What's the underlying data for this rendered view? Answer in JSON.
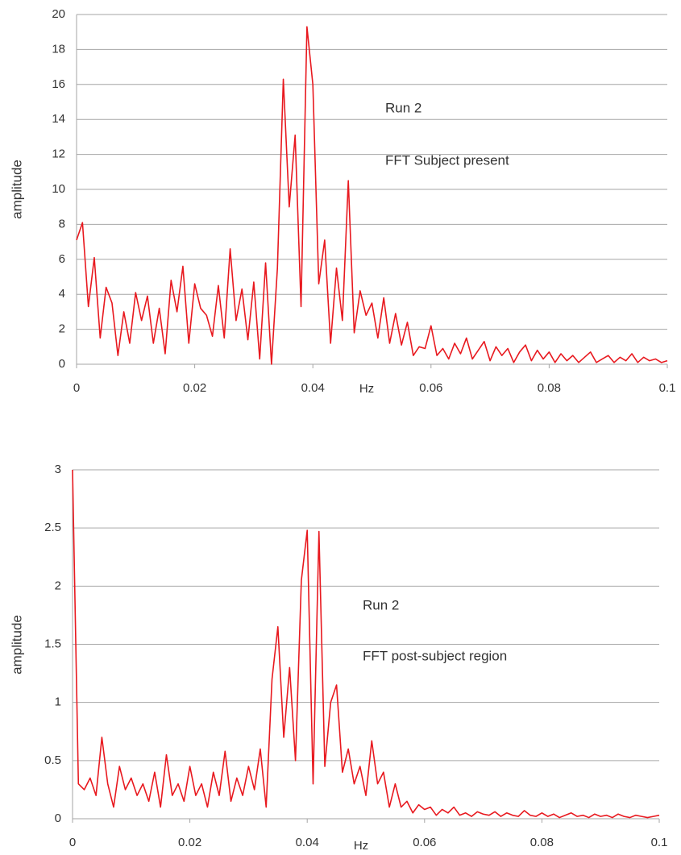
{
  "chart_data": [
    {
      "type": "line",
      "x_label": "Hz",
      "y_label": "amplitude",
      "annotations": [
        "Run 2",
        "FFT Subject present"
      ],
      "color": "#e8191f",
      "grid": true,
      "xlim": [
        0,
        0.1
      ],
      "xticks": [
        0,
        0.02,
        0.04,
        0.06,
        0.08,
        0.1
      ],
      "ylim": [
        0,
        20
      ],
      "yticks": [
        0,
        2,
        4,
        6,
        8,
        10,
        12,
        14,
        16,
        18,
        20
      ],
      "x": [
        0,
        0.001,
        0.002,
        0.003,
        0.004,
        0.005,
        0.006,
        0.007,
        0.008,
        0.009,
        0.01,
        0.011,
        0.012,
        0.013,
        0.014,
        0.015,
        0.016,
        0.017,
        0.018,
        0.019,
        0.02,
        0.021,
        0.022,
        0.023,
        0.024,
        0.025,
        0.026,
        0.027,
        0.028,
        0.029,
        0.03,
        0.031,
        0.032,
        0.033,
        0.034,
        0.035,
        0.036,
        0.037,
        0.038,
        0.039,
        0.04,
        0.041,
        0.042,
        0.043,
        0.044,
        0.045,
        0.046,
        0.047,
        0.048,
        0.049,
        0.05,
        0.051,
        0.052,
        0.053,
        0.054,
        0.055,
        0.056,
        0.057,
        0.058,
        0.059,
        0.06,
        0.061,
        0.062,
        0.063,
        0.064,
        0.065,
        0.066,
        0.067,
        0.068,
        0.069,
        0.07,
        0.071,
        0.072,
        0.073,
        0.074,
        0.075,
        0.076,
        0.077,
        0.078,
        0.079,
        0.08,
        0.081,
        0.082,
        0.083,
        0.084,
        0.085,
        0.086,
        0.087,
        0.088,
        0.089,
        0.09,
        0.091,
        0.092,
        0.093,
        0.094,
        0.095,
        0.096,
        0.097,
        0.098,
        0.099,
        0.1
      ],
      "values": [
        7.1,
        8.1,
        3.3,
        6.1,
        1.5,
        4.4,
        3.5,
        0.5,
        3,
        1.2,
        4.1,
        2.5,
        3.9,
        1.2,
        3.2,
        0.6,
        4.8,
        3,
        5.6,
        1.2,
        4.6,
        3.2,
        2.8,
        1.6,
        4.5,
        1.5,
        6.6,
        2.5,
        4.3,
        1.4,
        4.7,
        0.3,
        5.8,
        0,
        5.5,
        16.3,
        9,
        13.1,
        3.3,
        19.3,
        16,
        4.6,
        7.1,
        1.2,
        5.5,
        2.5,
        10.5,
        1.8,
        4.2,
        2.8,
        3.5,
        1.5,
        3.8,
        1.2,
        2.9,
        1.1,
        2.4,
        0.5,
        1,
        0.9,
        2.2,
        0.5,
        0.9,
        0.3,
        1.2,
        0.6,
        1.5,
        0.3,
        0.8,
        1.3,
        0.2,
        1,
        0.5,
        0.9,
        0.1,
        0.7,
        1.1,
        0.2,
        0.8,
        0.3,
        0.7,
        0.1,
        0.6,
        0.2,
        0.5,
        0.1,
        0.4,
        0.7,
        0.1,
        0.3,
        0.5,
        0.1,
        0.4,
        0.2,
        0.6,
        0.1,
        0.4,
        0.2,
        0.3,
        0.1,
        0.2
      ]
    },
    {
      "type": "line",
      "x_label": "Hz",
      "y_label": "amplitude",
      "annotations": [
        "Run 2",
        "FFT post-subject region"
      ],
      "color": "#e8191f",
      "grid": true,
      "xlim": [
        0,
        0.1
      ],
      "xticks": [
        0,
        0.02,
        0.04,
        0.06,
        0.08,
        0.1
      ],
      "ylim": [
        0,
        3
      ],
      "yticks": [
        0,
        0.5,
        1,
        1.5,
        2,
        2.5,
        3
      ],
      "x": [
        0,
        0.001,
        0.002,
        0.003,
        0.004,
        0.005,
        0.006,
        0.007,
        0.008,
        0.009,
        0.01,
        0.011,
        0.012,
        0.013,
        0.014,
        0.015,
        0.016,
        0.017,
        0.018,
        0.019,
        0.02,
        0.021,
        0.022,
        0.023,
        0.024,
        0.025,
        0.026,
        0.027,
        0.028,
        0.029,
        0.03,
        0.031,
        0.032,
        0.033,
        0.034,
        0.035,
        0.036,
        0.037,
        0.038,
        0.039,
        0.04,
        0.041,
        0.042,
        0.043,
        0.044,
        0.045,
        0.046,
        0.047,
        0.048,
        0.049,
        0.05,
        0.051,
        0.052,
        0.053,
        0.054,
        0.055,
        0.056,
        0.057,
        0.058,
        0.059,
        0.06,
        0.061,
        0.062,
        0.063,
        0.064,
        0.065,
        0.066,
        0.067,
        0.068,
        0.069,
        0.07,
        0.071,
        0.072,
        0.073,
        0.074,
        0.075,
        0.076,
        0.077,
        0.078,
        0.079,
        0.08,
        0.081,
        0.082,
        0.083,
        0.084,
        0.085,
        0.086,
        0.087,
        0.088,
        0.089,
        0.09,
        0.091,
        0.092,
        0.093,
        0.094,
        0.095,
        0.096,
        0.097,
        0.098,
        0.099,
        0.1
      ],
      "values": [
        3,
        0.3,
        0.25,
        0.35,
        0.2,
        0.7,
        0.3,
        0.1,
        0.45,
        0.25,
        0.35,
        0.2,
        0.3,
        0.15,
        0.4,
        0.1,
        0.55,
        0.2,
        0.3,
        0.15,
        0.45,
        0.2,
        0.3,
        0.1,
        0.4,
        0.2,
        0.58,
        0.15,
        0.35,
        0.2,
        0.45,
        0.25,
        0.6,
        0.1,
        1.2,
        1.65,
        0.7,
        1.3,
        0.5,
        2.05,
        2.48,
        0.3,
        2.47,
        0.45,
        1,
        1.15,
        0.4,
        0.6,
        0.3,
        0.45,
        0.2,
        0.67,
        0.3,
        0.4,
        0.1,
        0.3,
        0.1,
        0.15,
        0.05,
        0.12,
        0.08,
        0.1,
        0.03,
        0.08,
        0.05,
        0.1,
        0.03,
        0.05,
        0.02,
        0.06,
        0.04,
        0.03,
        0.06,
        0.02,
        0.05,
        0.03,
        0.02,
        0.07,
        0.03,
        0.02,
        0.05,
        0.02,
        0.04,
        0.01,
        0.03,
        0.05,
        0.02,
        0.03,
        0.01,
        0.04,
        0.02,
        0.03,
        0.01,
        0.04,
        0.02,
        0.01,
        0.03,
        0.02,
        0.01,
        0.02,
        0.03
      ]
    }
  ]
}
